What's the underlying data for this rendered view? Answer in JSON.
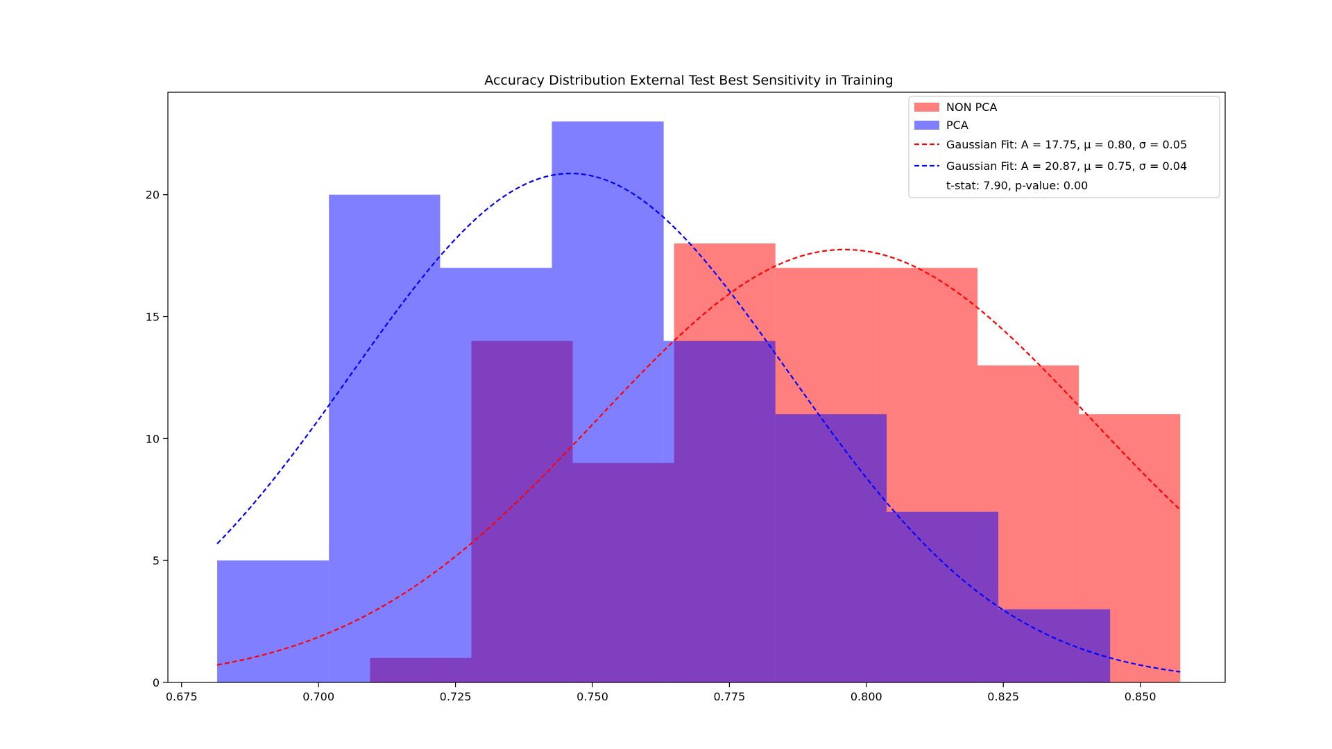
{
  "chart_data": {
    "type": "bar",
    "title": "Accuracy Distribution External Test Best Sensitivity in Training",
    "xlabel": "",
    "ylabel": "",
    "xlim": [
      0.6725,
      0.8655
    ],
    "ylim": [
      0,
      24.2
    ],
    "xticks": [
      0.675,
      0.7,
      0.725,
      0.75,
      0.775,
      0.8,
      0.825,
      0.85
    ],
    "xtick_labels": [
      "0.675",
      "0.700",
      "0.725",
      "0.750",
      "0.775",
      "0.800",
      "0.825",
      "0.850"
    ],
    "yticks": [
      0,
      5,
      10,
      15,
      20
    ],
    "ytick_labels": [
      "0",
      "5",
      "10",
      "15",
      "20"
    ],
    "legend_position": "top-right",
    "histograms": [
      {
        "name": "NON PCA",
        "color": "#ff0000",
        "opacity": 0.5,
        "bin_edges": [
          0.7094,
          0.7279,
          0.7464,
          0.7649,
          0.7834,
          0.8019,
          0.8203,
          0.8388,
          0.8573
        ],
        "counts": [
          1,
          14,
          9,
          18,
          17,
          17,
          13,
          11
        ]
      },
      {
        "name": "PCA",
        "color": "#0000ff",
        "opacity": 0.5,
        "bin_edges": [
          0.6815,
          0.7019,
          0.7222,
          0.7426,
          0.763,
          0.7834,
          0.8037,
          0.8241,
          0.8445
        ],
        "counts": [
          5,
          20,
          17,
          23,
          14,
          11,
          7,
          3
        ]
      }
    ],
    "fits": [
      {
        "name": "Gaussian Fit: A = 17.75, $\\mu$ = 0.80, $\\sigma$ = 0.05",
        "label_text": "Gaussian Fit: A = 17.75, μ = 0.80, σ = 0.05",
        "color": "#ff0000",
        "A": 17.75,
        "mu": 0.796,
        "sigma": 0.0452,
        "x_range": [
          0.6815,
          0.8573
        ]
      },
      {
        "name": "Gaussian Fit: A = 20.87, $\\mu$ = 0.75, $\\sigma$ = 0.04",
        "label_text": "Gaussian Fit: A = 20.87, μ = 0.75, σ = 0.04",
        "color": "#0000ff",
        "A": 20.87,
        "mu": 0.746,
        "sigma": 0.04,
        "x_range": [
          0.6815,
          0.8573
        ]
      }
    ],
    "legend": {
      "entries": [
        "NON PCA",
        "PCA",
        "Gaussian Fit: A = 17.75, μ = 0.80, σ = 0.05",
        "Gaussian Fit: A = 20.87, μ = 0.75, σ = 0.04"
      ],
      "stat_text": "t-stat: 7.90, p-value: 0.00"
    }
  }
}
